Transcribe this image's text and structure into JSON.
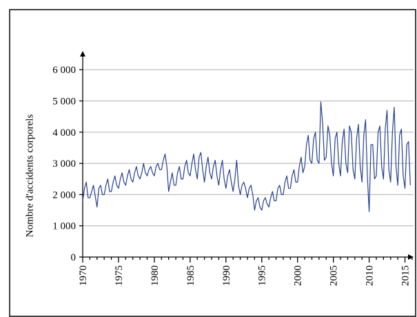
{
  "chart_data": {
    "type": "line",
    "y_label": "Nombre d'accidents corporels",
    "x": [
      1970,
      1970.25,
      1970.5,
      1970.75,
      1971,
      1971.25,
      1971.5,
      1971.75,
      1972,
      1972.25,
      1972.5,
      1972.75,
      1973,
      1973.25,
      1973.5,
      1973.75,
      1974,
      1974.25,
      1974.5,
      1974.75,
      1975,
      1975.25,
      1975.5,
      1975.75,
      1976,
      1976.25,
      1976.5,
      1976.75,
      1977,
      1977.25,
      1977.5,
      1977.75,
      1978,
      1978.25,
      1978.5,
      1978.75,
      1979,
      1979.25,
      1979.5,
      1979.75,
      1980,
      1980.25,
      1980.5,
      1980.75,
      1981,
      1981.25,
      1981.5,
      1981.75,
      1982,
      1982.25,
      1982.5,
      1982.75,
      1983,
      1983.25,
      1983.5,
      1983.75,
      1984,
      1984.25,
      1984.5,
      1984.75,
      1985,
      1985.25,
      1985.5,
      1985.75,
      1986,
      1986.25,
      1986.5,
      1986.75,
      1987,
      1987.25,
      1987.5,
      1987.75,
      1988,
      1988.25,
      1988.5,
      1988.75,
      1989,
      1989.25,
      1989.5,
      1989.75,
      1990,
      1990.25,
      1990.5,
      1990.75,
      1991,
      1991.25,
      1991.5,
      1991.75,
      1992,
      1992.25,
      1992.5,
      1992.75,
      1993,
      1993.25,
      1993.5,
      1993.75,
      1994,
      1994.25,
      1994.5,
      1994.75,
      1995,
      1995.25,
      1995.5,
      1995.75,
      1996,
      1996.25,
      1996.5,
      1996.75,
      1997,
      1997.25,
      1997.5,
      1997.75,
      1998,
      1998.25,
      1998.5,
      1998.75,
      1999,
      1999.25,
      1999.5,
      1999.75,
      2000,
      2000.25,
      2000.5,
      2000.75,
      2001,
      2001.25,
      2001.5,
      2001.75,
      2002,
      2002.25,
      2002.5,
      2002.75,
      2003,
      2003.25,
      2003.5,
      2003.75,
      2004,
      2004.25,
      2004.5,
      2004.75,
      2005,
      2005.25,
      2005.5,
      2005.75,
      2006,
      2006.25,
      2006.5,
      2006.75,
      2007,
      2007.25,
      2007.5,
      2007.75,
      2008,
      2008.25,
      2008.5,
      2008.75,
      2009,
      2009.25,
      2009.5,
      2009.75,
      2010,
      2010.25,
      2010.5,
      2010.75,
      2011,
      2011.25,
      2011.5,
      2011.75,
      2012,
      2012.25,
      2012.5,
      2012.75,
      2013,
      2013.25,
      2013.5,
      2013.75,
      2014,
      2014.25,
      2014.5,
      2014.75,
      2015,
      2015.25,
      2015.5,
      2015.75
    ],
    "series": [
      {
        "color": "#26408f",
        "values": [
          1800,
          2200,
          2400,
          1900,
          1900,
          2100,
          2300,
          1950,
          1600,
          2200,
          2300,
          2000,
          2000,
          2300,
          2500,
          2100,
          2100,
          2400,
          2600,
          2300,
          2200,
          2500,
          2700,
          2400,
          2300,
          2600,
          2800,
          2500,
          2400,
          2700,
          2900,
          2600,
          2500,
          2700,
          3000,
          2700,
          2600,
          2800,
          2900,
          2700,
          2600,
          2900,
          3000,
          2800,
          2800,
          3100,
          3300,
          2900,
          2100,
          2400,
          2700,
          2300,
          2300,
          2700,
          2900,
          2500,
          2500,
          2900,
          3100,
          2700,
          2600,
          3000,
          3300,
          2800,
          2500,
          3200,
          3350,
          2800,
          2400,
          2900,
          3200,
          2700,
          2500,
          2900,
          3100,
          2600,
          2300,
          2800,
          3100,
          2500,
          2200,
          2600,
          2800,
          2400,
          2100,
          2500,
          3100,
          2300,
          2000,
          2300,
          2400,
          2200,
          1900,
          2200,
          2300,
          2000,
          1500,
          1800,
          1900,
          1600,
          1500,
          1800,
          1900,
          1700,
          1600,
          1900,
          2100,
          1800,
          1800,
          2200,
          2300,
          2000,
          2000,
          2400,
          2600,
          2200,
          2200,
          2600,
          2800,
          2400,
          2400,
          2900,
          3200,
          2700,
          2900,
          3600,
          3900,
          3100,
          3000,
          3800,
          4000,
          3100,
          3000,
          4970,
          4300,
          3100,
          3200,
          4200,
          3900,
          3000,
          2600,
          3800,
          4000,
          3000,
          2600,
          3700,
          4100,
          3000,
          2700,
          4200,
          4000,
          2800,
          2500,
          3800,
          4250,
          2900,
          2400,
          3900,
          4400,
          2600,
          1450,
          3600,
          3600,
          2500,
          2600,
          4000,
          4200,
          2900,
          2500,
          4100,
          4700,
          2800,
          2400,
          4000,
          4800,
          2900,
          2300,
          3900,
          4100,
          2600,
          2200,
          3600,
          3700,
          2300
        ]
      }
    ],
    "xlim": [
      1970,
      2016.2
    ],
    "xticks": [
      1970,
      1975,
      1980,
      1985,
      1990,
      1995,
      2000,
      2005,
      2010,
      2015
    ],
    "xminorticks": [
      1971,
      1972,
      1973,
      1974,
      1976,
      1977,
      1978,
      1979,
      1981,
      1982,
      1983,
      1984,
      1986,
      1987,
      1988,
      1989,
      1991,
      1992,
      1993,
      1994,
      1996,
      1997,
      1998,
      1999,
      2001,
      2002,
      2003,
      2004,
      2006,
      2007,
      2008,
      2009,
      2011,
      2012,
      2013,
      2014,
      2016
    ],
    "ylim": [
      0,
      6600
    ],
    "yticks": [
      0,
      {
        "value": 1000,
        "label": "1 000"
      },
      {
        "value": 2000,
        "label": "2 000"
      },
      {
        "value": 3000,
        "label": "3 000"
      },
      {
        "value": 4000,
        "label": "4 000"
      },
      {
        "value": 5000,
        "label": "5 000"
      },
      {
        "value": 6000,
        "label": "6 000"
      }
    ],
    "grid": true
  }
}
